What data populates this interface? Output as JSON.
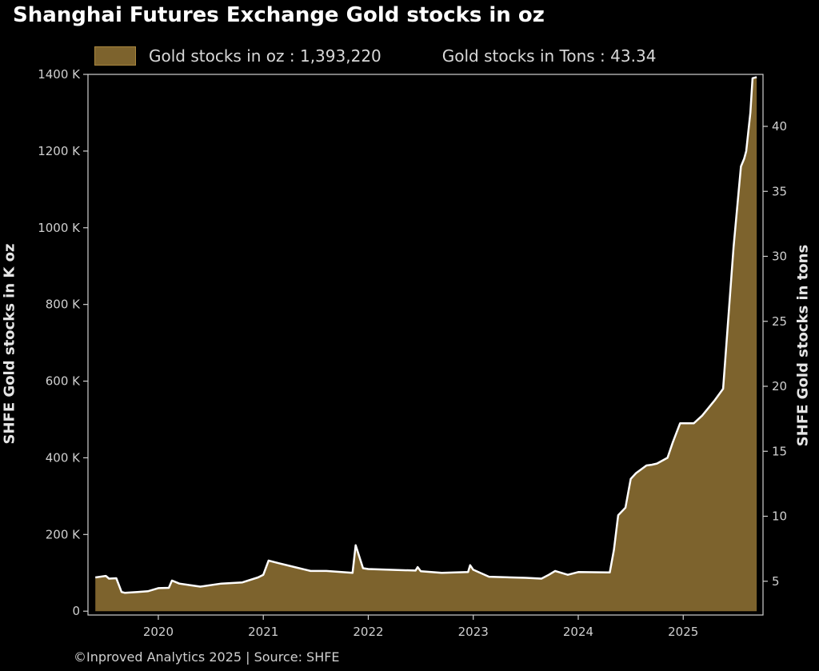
{
  "title": "Shanghai Futures Exchange Gold stocks in oz",
  "legend": {
    "series_label": "Gold stocks in oz : 1,393,220",
    "tons_label": "Gold stocks in Tons : 43.34"
  },
  "footer": "©Inproved Analytics 2025 | Source: SHFE",
  "colors": {
    "fill": "#7d632d",
    "line": "#ffffff",
    "background": "#000000",
    "axis": "#d0d0d0"
  },
  "chart_data": {
    "type": "area",
    "title": "Shanghai Futures Exchange Gold stocks in oz",
    "ylabel": "SHFE Gold stocks in K oz",
    "ylabel_right": "SHFE Gold stocks in tons",
    "xlim": [
      2019.33,
      2025.76
    ],
    "ylim": [
      -10,
      1400
    ],
    "ylim_right": [
      2.4,
      44.0
    ],
    "x_ticks": [
      2020,
      2021,
      2022,
      2023,
      2024,
      2025
    ],
    "x_tick_labels": [
      "2020",
      "2021",
      "2022",
      "2023",
      "2024",
      "2025"
    ],
    "y_ticks": [
      0,
      200,
      400,
      600,
      800,
      1000,
      1200,
      1400
    ],
    "y_tick_labels": [
      "0",
      "200 K",
      "400 K",
      "600 K",
      "800 K",
      "1000 K",
      "1200 K",
      "1400 K"
    ],
    "y_right_ticks": [
      5,
      10,
      15,
      20,
      25,
      30,
      35,
      40
    ],
    "y_right_tick_labels": [
      "5",
      "10",
      "15",
      "20",
      "25",
      "30",
      "35",
      "40"
    ],
    "units": "K oz",
    "x": [
      2019.4,
      2019.5,
      2019.53,
      2019.6,
      2019.65,
      2019.68,
      2019.8,
      2019.9,
      2020.0,
      2020.1,
      2020.13,
      2020.2,
      2020.3,
      2020.4,
      2020.6,
      2020.8,
      2020.95,
      2021.0,
      2021.05,
      2021.15,
      2021.3,
      2021.45,
      2021.6,
      2021.85,
      2021.88,
      2021.95,
      2022.0,
      2022.2,
      2022.45,
      2022.47,
      2022.5,
      2022.7,
      2022.95,
      2022.97,
      2023.0,
      2023.15,
      2023.5,
      2023.65,
      2023.72,
      2023.78,
      2023.9,
      2024.0,
      2024.3,
      2024.34,
      2024.38,
      2024.45,
      2024.5,
      2024.55,
      2024.65,
      2024.7,
      2024.75,
      2024.85,
      2024.9,
      2024.97,
      2025.1,
      2025.18,
      2025.3,
      2025.38,
      2025.48,
      2025.55,
      2025.58,
      2025.6,
      2025.64,
      2025.66,
      2025.7
    ],
    "values": [
      88,
      92,
      85,
      86,
      50,
      48,
      50,
      52,
      60,
      61,
      80,
      72,
      68,
      64,
      72,
      75,
      88,
      95,
      132,
      125,
      115,
      105,
      105,
      100,
      172,
      112,
      110,
      108,
      106,
      115,
      104,
      100,
      102,
      120,
      108,
      90,
      87,
      85,
      95,
      105,
      95,
      102,
      101,
      160,
      250,
      270,
      345,
      360,
      380,
      382,
      385,
      400,
      440,
      490,
      490,
      510,
      550,
      580,
      950,
      1160,
      1180,
      1200,
      1300,
      1390,
      1393
    ]
  }
}
